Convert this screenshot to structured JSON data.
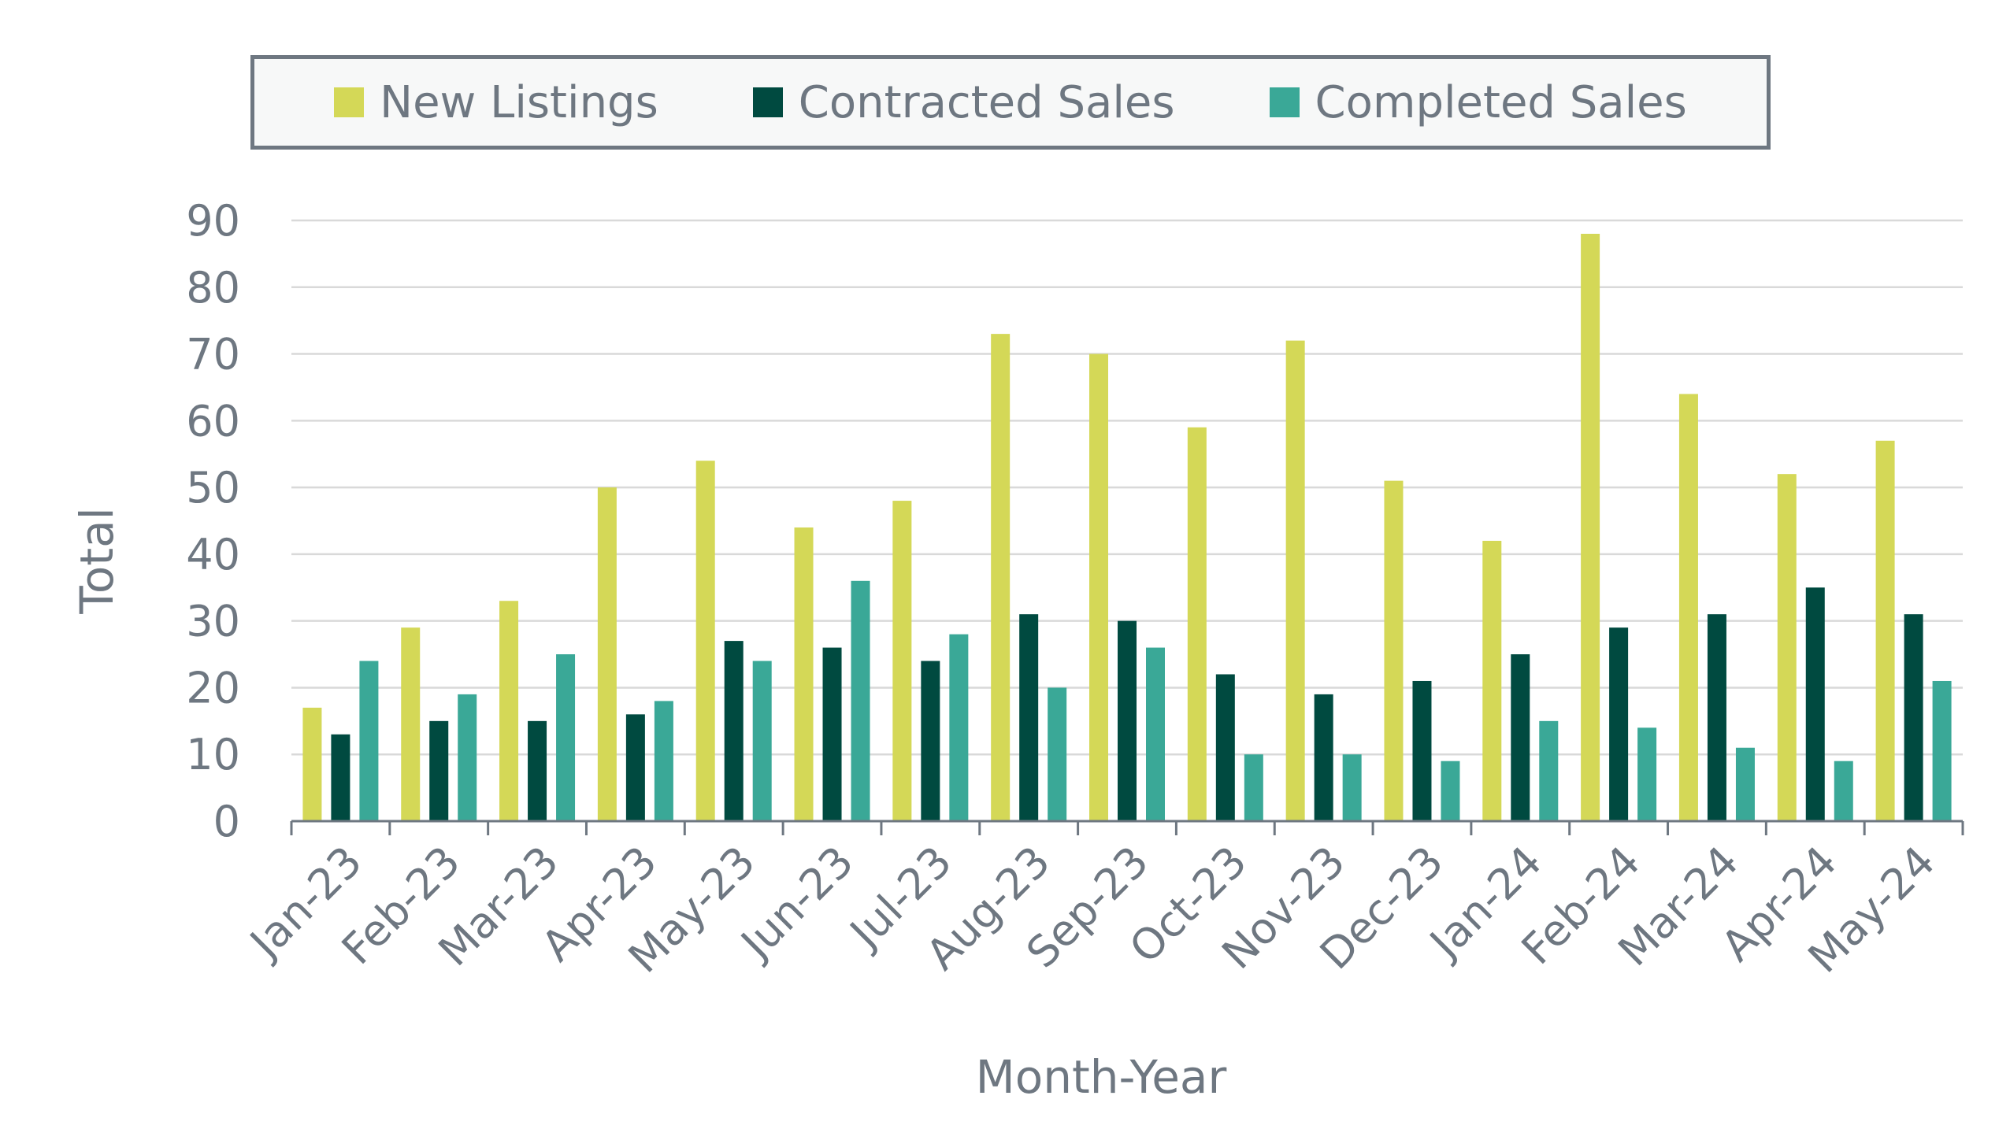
{
  "chart_data": {
    "type": "bar",
    "title": "",
    "xlabel": "Month-Year",
    "ylabel": "Total",
    "ylim": [
      0,
      90
    ],
    "yticks": [
      0,
      10,
      20,
      30,
      40,
      50,
      60,
      70,
      80,
      90
    ],
    "grid": true,
    "legend_position": "top",
    "categories": [
      "Jan-23",
      "Feb-23",
      "Mar-23",
      "Apr-23",
      "May-23",
      "Jun-23",
      "Jul-23",
      "Aug-23",
      "Sep-23",
      "Oct-23",
      "Nov-23",
      "Dec-23",
      "Jan-24",
      "Feb-24",
      "Mar-24",
      "Apr-24",
      "May-24"
    ],
    "series": [
      {
        "name": "New Listings",
        "color": "#d4d857",
        "values": [
          17,
          29,
          33,
          50,
          54,
          44,
          48,
          73,
          70,
          59,
          72,
          51,
          42,
          88,
          64,
          52,
          57
        ]
      },
      {
        "name": "Contracted Sales",
        "color": "#004a40",
        "values": [
          13,
          15,
          15,
          16,
          27,
          26,
          24,
          31,
          30,
          22,
          19,
          21,
          25,
          29,
          31,
          35,
          31
        ]
      },
      {
        "name": "Completed Sales",
        "color": "#3aa897",
        "values": [
          24,
          19,
          25,
          18,
          24,
          36,
          28,
          20,
          26,
          10,
          10,
          9,
          15,
          14,
          11,
          9,
          21
        ]
      }
    ]
  }
}
